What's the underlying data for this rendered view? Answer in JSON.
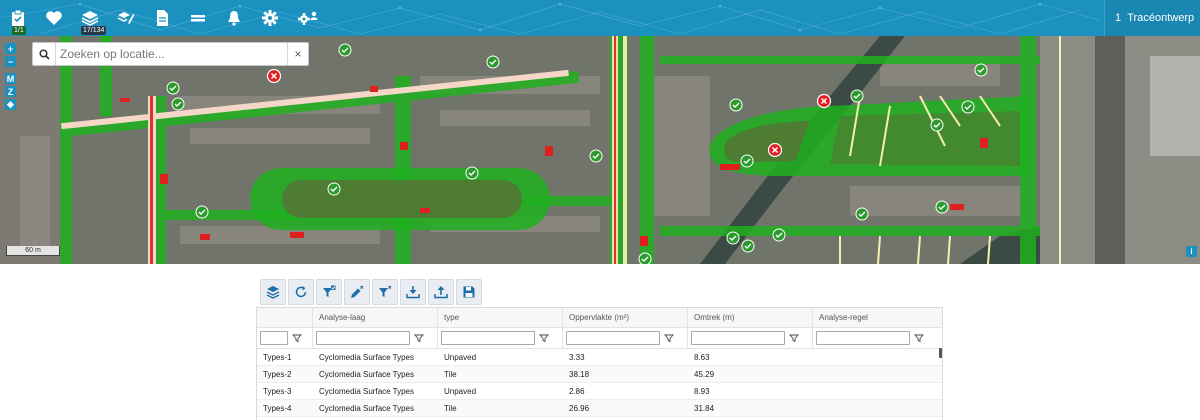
{
  "topbar": {
    "buttons": [
      {
        "name": "clipboard-check-button",
        "icon": "clipboard-check-icon",
        "badge": "1/1"
      },
      {
        "name": "favorites-button",
        "icon": "heart-icon"
      },
      {
        "name": "layers-button",
        "icon": "layers-icon",
        "badge": "17/134"
      },
      {
        "name": "edit-layers-button",
        "icon": "layers-edit-icon"
      },
      {
        "name": "document-button",
        "icon": "document-icon"
      },
      {
        "name": "menu-button",
        "icon": "equals-icon"
      },
      {
        "name": "notifications-button",
        "icon": "bell-icon"
      },
      {
        "name": "settings-button",
        "icon": "gear-icon"
      },
      {
        "name": "user-settings-button",
        "icon": "gear-user-icon"
      }
    ],
    "badge_clipboard": "1/1",
    "badge_layers": "17/134",
    "project_number": "1",
    "project_name": "Tracéontwerp"
  },
  "search": {
    "placeholder": "Zoeken op locatie...",
    "clear_label": "×"
  },
  "map_controls": {
    "zoom_in": "+",
    "zoom_out": "−",
    "m": "M",
    "z": "Z",
    "locate": "◈"
  },
  "scale_label": "60 m",
  "info_label": "i",
  "colors": {
    "topbar": "#1b91c0",
    "ok_marker": "#2c9a2c",
    "error_marker": "#e02020",
    "overlay_green": "#1fb01f"
  },
  "toolbar": {
    "tools": [
      "layers-icon",
      "refresh-icon",
      "filter-check-icon",
      "pen-clear-icon",
      "filter-clear-icon",
      "download-icon",
      "upload-icon",
      "save-icon"
    ]
  },
  "grid": {
    "columns": [
      "",
      "Analyse-laag",
      "type",
      "Oppervlakte (m²)",
      "Omtrek (m)",
      "Analyse-regel"
    ],
    "rows": [
      [
        "Types-1",
        "Cyclomedia Surface Types",
        "Unpaved",
        "3.33",
        "8.63",
        ""
      ],
      [
        "Types-2",
        "Cyclomedia Surface Types",
        "Tile",
        "38.18",
        "45.29",
        ""
      ],
      [
        "Types-3",
        "Cyclomedia Surface Types",
        "Unpaved",
        "2.86",
        "8.93",
        ""
      ],
      [
        "Types-4",
        "Cyclomedia Surface Types",
        "Tile",
        "26.96",
        "31.84",
        ""
      ]
    ]
  }
}
